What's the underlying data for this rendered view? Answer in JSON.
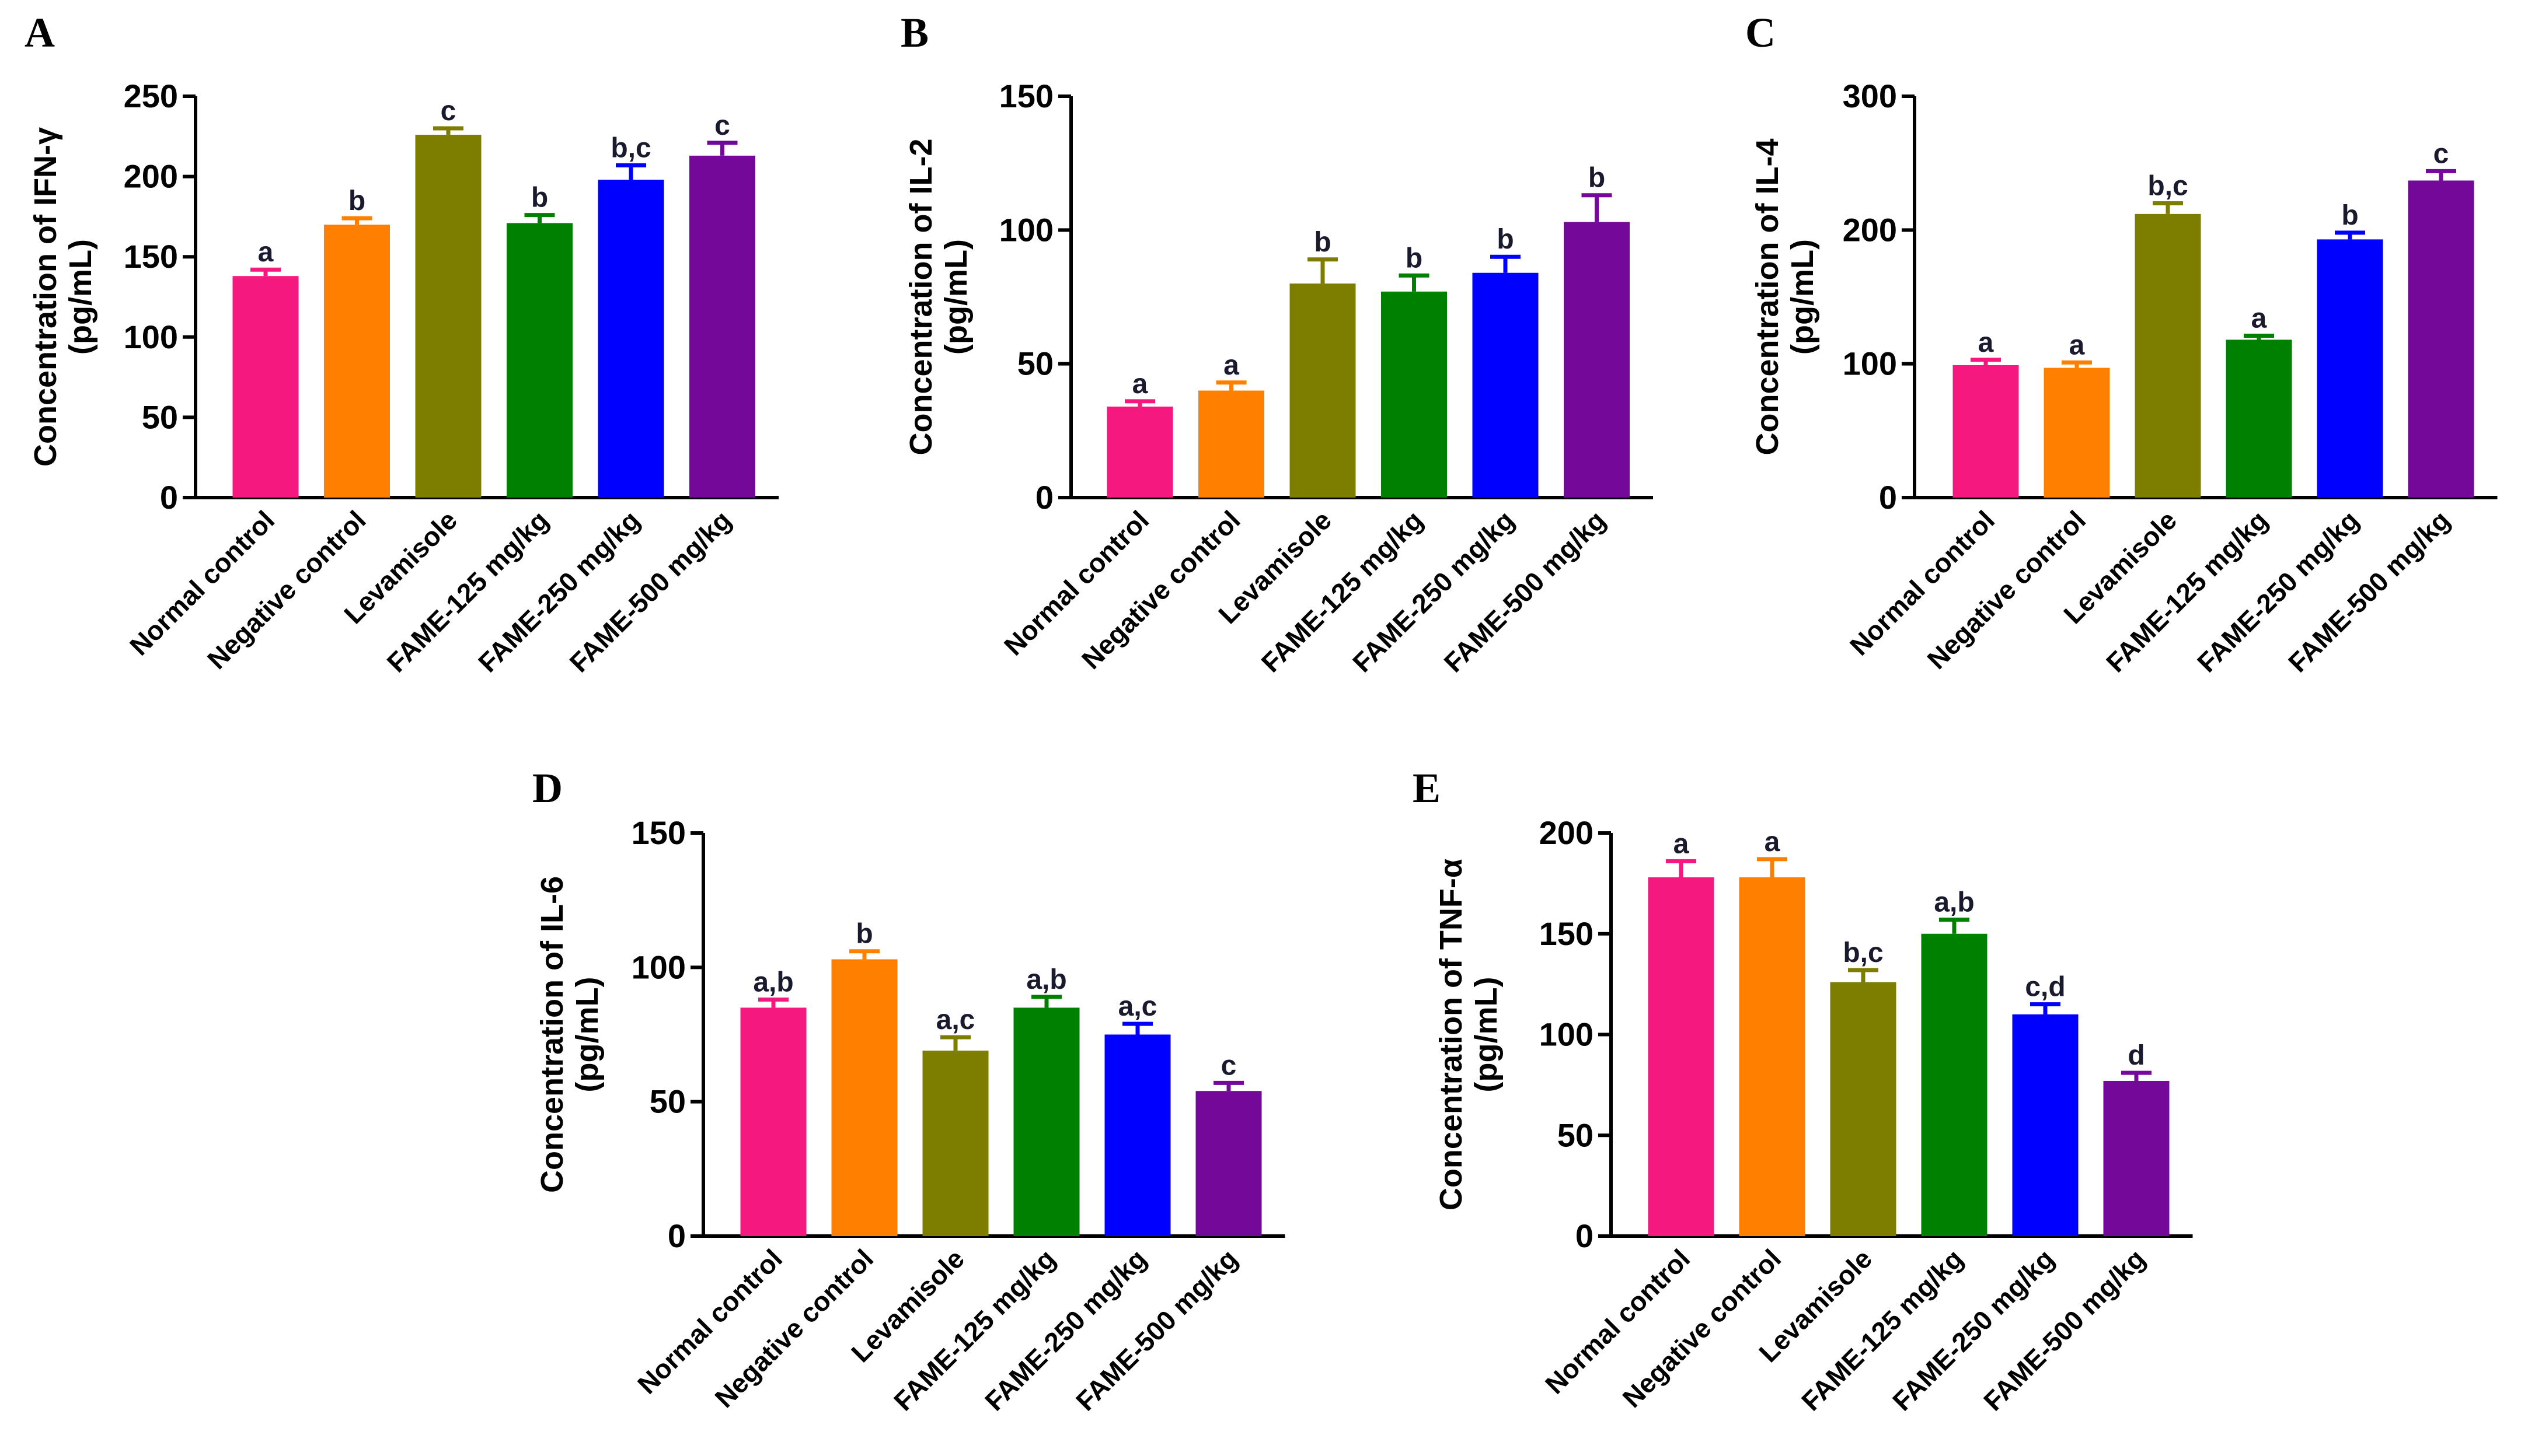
{
  "colors": {
    "Normal control": "#f5197f",
    "Negative control": "#ff8000",
    "Levamisole": "#7d7d00",
    "FAME-125 mg/kg": "#008000",
    "FAME-250 mg/kg": "#0000ff",
    "FAME-500 mg/kg": "#740898"
  },
  "chart_data": [
    {
      "panel": "A",
      "type": "bar",
      "ylabel_line1": "Concentration of IFN-γ",
      "ylabel_line2": "(pg/mL)",
      "ylim": [
        0,
        250
      ],
      "yticks": [
        0,
        50,
        100,
        150,
        200,
        250
      ],
      "categories": [
        "Normal control",
        "Negative control",
        "Levamisole",
        "FAME-125 mg/kg",
        "FAME-250 mg/kg",
        "FAME-500 mg/kg"
      ],
      "values": [
        138,
        170,
        226,
        171,
        198,
        213
      ],
      "errors": [
        4,
        4,
        4,
        5,
        9,
        8
      ],
      "labels": [
        "a",
        "b",
        "c",
        "b",
        "b,c",
        "c"
      ]
    },
    {
      "panel": "B",
      "type": "bar",
      "ylabel_line1": "Concentration of IL-2",
      "ylabel_line2": "(pg/mL)",
      "ylim": [
        0,
        150
      ],
      "yticks": [
        0,
        50,
        100,
        150
      ],
      "categories": [
        "Normal control",
        "Negative control",
        "Levamisole",
        "FAME-125 mg/kg",
        "FAME-250 mg/kg",
        "FAME-500 mg/kg"
      ],
      "values": [
        34,
        40,
        80,
        77,
        84,
        103
      ],
      "errors": [
        2,
        3,
        9,
        6,
        6,
        10
      ],
      "labels": [
        "a",
        "a",
        "b",
        "b",
        "b",
        "b"
      ]
    },
    {
      "panel": "C",
      "type": "bar",
      "ylabel_line1": "Concentration of IL-4",
      "ylabel_line2": "(pg/mL)",
      "ylim": [
        0,
        300
      ],
      "yticks": [
        0,
        100,
        200,
        300
      ],
      "categories": [
        "Normal control",
        "Negative control",
        "Levamisole",
        "FAME-125 mg/kg",
        "FAME-250 mg/kg",
        "FAME-500 mg/kg"
      ],
      "values": [
        99,
        97,
        212,
        118,
        193,
        237
      ],
      "errors": [
        4,
        4,
        8,
        3,
        5,
        7
      ],
      "labels": [
        "a",
        "a",
        "b,c",
        "a",
        "b",
        "c"
      ]
    },
    {
      "panel": "D",
      "type": "bar",
      "ylabel_line1": "Concentration of IL-6",
      "ylabel_line2": "(pg/mL)",
      "ylim": [
        0,
        150
      ],
      "yticks": [
        0,
        50,
        100,
        150
      ],
      "categories": [
        "Normal control",
        "Negative control",
        "Levamisole",
        "FAME-125 mg/kg",
        "FAME-250 mg/kg",
        "FAME-500 mg/kg"
      ],
      "values": [
        85,
        103,
        69,
        85,
        75,
        54
      ],
      "errors": [
        3,
        3,
        5,
        4,
        4,
        3
      ],
      "labels": [
        "a,b",
        "b",
        "a,c",
        "a,b",
        "a,c",
        "c"
      ]
    },
    {
      "panel": "E",
      "type": "bar",
      "ylabel_line1": "Concentration of TNF-α",
      "ylabel_line2": "(pg/mL)",
      "ylim": [
        0,
        200
      ],
      "yticks": [
        0,
        50,
        100,
        150,
        200
      ],
      "categories": [
        "Normal control",
        "Negative control",
        "Levamisole",
        "FAME-125 mg/kg",
        "FAME-250 mg/kg",
        "FAME-500 mg/kg"
      ],
      "values": [
        178,
        178,
        126,
        150,
        110,
        77
      ],
      "errors": [
        8,
        9,
        6,
        7,
        5,
        4
      ],
      "labels": [
        "a",
        "a",
        "b,c",
        "a,b",
        "c,d",
        "d"
      ]
    }
  ]
}
